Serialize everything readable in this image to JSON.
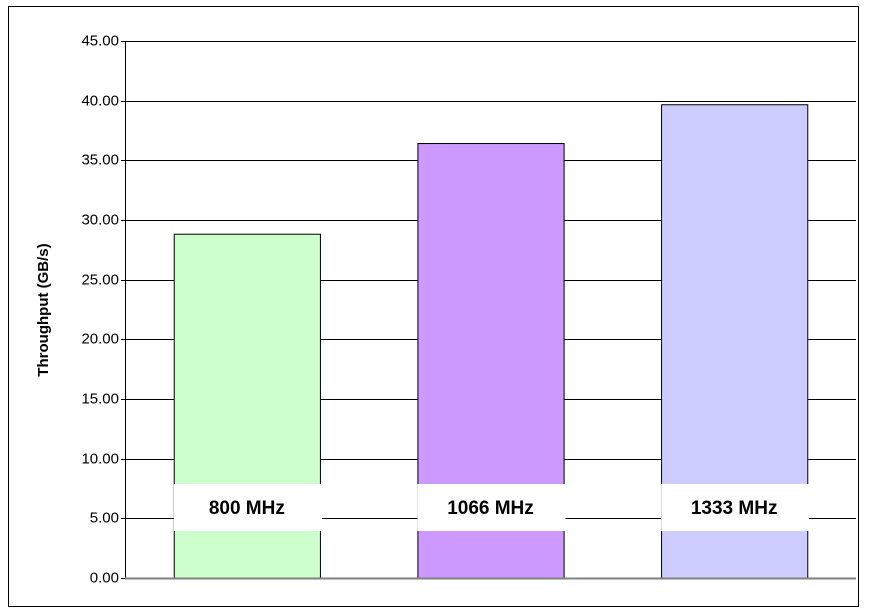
{
  "chart_data": {
    "type": "bar",
    "y_label": "Throughput (GB/s)",
    "categories": [
      "800 MHz",
      "1066 MHz",
      "1333 MHz"
    ],
    "values": [
      28.85,
      36.45,
      39.7
    ],
    "colors": [
      "#ccffcc",
      "#cc99ff",
      "#ccccff"
    ],
    "ylim": [
      0,
      45
    ],
    "yticks": [
      {
        "value": 0,
        "label": "0.00"
      },
      {
        "value": 5,
        "label": "5.00"
      },
      {
        "value": 10,
        "label": "10.00"
      },
      {
        "value": 15,
        "label": "15.00"
      },
      {
        "value": 20,
        "label": "20.00"
      },
      {
        "value": 25,
        "label": "25.00"
      },
      {
        "value": 30,
        "label": "30.00"
      },
      {
        "value": 35,
        "label": "35.00"
      },
      {
        "value": 40,
        "label": "40.00"
      },
      {
        "value": 45,
        "label": "45.00"
      }
    ],
    "grid": true
  }
}
